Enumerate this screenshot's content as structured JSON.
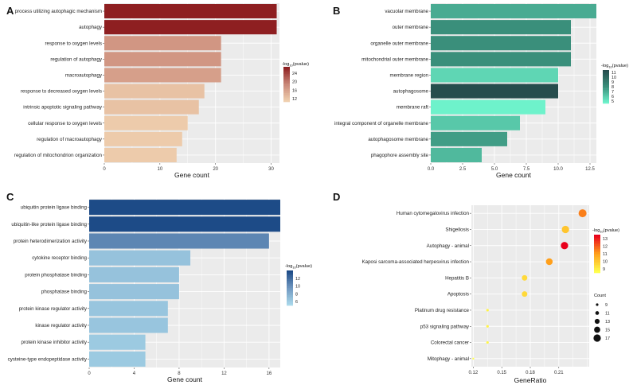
{
  "chart_data": [
    {
      "panel": "A",
      "type": "bar",
      "orientation": "horizontal",
      "categories": [
        "process utilizing autophagic mechanism",
        "autophagy",
        "response to oxygen levels",
        "regulation of autophagy",
        "macroautophagy",
        "response to decreased oxygen levels",
        "intrinsic apoptotic signaling pathway",
        "cellular response to oxygen levels",
        "regulation of macroautophagy",
        "regulation of mitochondrion organization"
      ],
      "values": [
        31,
        31,
        21,
        21,
        21,
        18,
        17,
        15,
        14,
        13
      ],
      "color_values": [
        27,
        27,
        17,
        17,
        16,
        12,
        12,
        11,
        11,
        11
      ],
      "xlabel": "Gene count",
      "xlim": [
        0,
        31.5
      ],
      "xticks": [
        "0",
        "10",
        "20",
        "30"
      ],
      "xtick_values": [
        0,
        10,
        20,
        30
      ],
      "legend": {
        "title_base": "-log",
        "title_sub": "10",
        "title_rest": "(pvalue)",
        "ticks": [
          "24",
          "20",
          "16",
          "12"
        ],
        "tick_values": [
          24,
          20,
          16,
          12
        ],
        "range": [
          10.5,
          27
        ]
      },
      "colors": {
        "low": "#efcfae",
        "mid": "#c98778",
        "high": "#8e1f21"
      }
    },
    {
      "panel": "B",
      "type": "bar",
      "orientation": "horizontal",
      "categories": [
        "vacuolar membrane",
        "outer membrane",
        "organelle outer membrane",
        "mitochondrial outer membrane",
        "membrane region",
        "autophagosome",
        "membrane raft",
        "integral component of organelle membrane",
        "autophagosome membrane",
        "phagophore assembly site"
      ],
      "values": [
        13,
        11,
        11,
        11,
        10,
        10,
        9,
        7,
        6,
        4
      ],
      "color_values": [
        7,
        8,
        8,
        8,
        5.5,
        11.5,
        4.5,
        6,
        7.5,
        6.5
      ],
      "xlabel": "Gene count",
      "xlim": [
        0,
        13
      ],
      "xticks": [
        "0.0",
        "2.5",
        "5.0",
        "7.5",
        "10.0",
        "12.5"
      ],
      "xtick_values": [
        0,
        2.5,
        5,
        7.5,
        10,
        12.5
      ],
      "legend": {
        "title_base": "-log",
        "title_sub": "10",
        "title_rest": "(pvalue)",
        "ticks": [
          "11",
          "10",
          "9",
          "8",
          "7",
          "6",
          "5"
        ],
        "tick_values": [
          11,
          10,
          9,
          8,
          7,
          6,
          5
        ],
        "range": [
          4.5,
          11.5
        ]
      },
      "colors": {
        "low": "#6ef2cb",
        "mid": "#3a8f7b",
        "high": "#264d4d"
      }
    },
    {
      "panel": "C",
      "type": "bar",
      "orientation": "horizontal",
      "categories": [
        "ubiquitin protein ligase binding",
        "ubiquitin-like protein ligase binding",
        "protein heterodimerization activity",
        "cytokine receptor binding",
        "protein phosphatase binding",
        "phosphatase binding",
        "protein kinase regulator activity",
        "kinase regulator activity",
        "protein kinase inhibitor activity",
        "cysteine-type endopeptidase activity"
      ],
      "values": [
        17,
        17,
        16,
        9,
        8,
        8,
        7,
        7,
        5,
        5
      ],
      "color_values": [
        14,
        14,
        10.5,
        6.5,
        6.5,
        6.5,
        6.3,
        6.3,
        6,
        6
      ],
      "xlabel": "Gene count",
      "xlim": [
        0,
        17
      ],
      "xticks": [
        "0",
        "4",
        "8",
        "12",
        "16"
      ],
      "xtick_values": [
        0,
        4,
        8,
        12,
        16
      ],
      "legend": {
        "title_base": "-log",
        "title_sub": "10",
        "title_rest": "(pvalue)",
        "ticks": [
          "12",
          "10",
          "8",
          "6"
        ],
        "tick_values": [
          12,
          10,
          8,
          6
        ],
        "range": [
          5,
          14
        ]
      },
      "colors": {
        "low": "#a9d8ea",
        "mid": "#6f97c0",
        "high": "#1d4b87"
      }
    },
    {
      "panel": "D",
      "type": "scatter",
      "categories": [
        "Human cytomegalovirus infection",
        "Shigellosis",
        "Autophagy - animal",
        "Kaposi sarcoma-associated herpesvirus infection",
        "Hepatitis B",
        "Apoptosis",
        "Platinum drug resistance",
        "p53 signaling pathway",
        "Colorectal cancer",
        "Mitophagy - animal"
      ],
      "x": [
        0.235,
        0.217,
        0.216,
        0.2,
        0.174,
        0.174,
        0.135,
        0.135,
        0.135,
        0.12
      ],
      "counts": [
        18,
        17,
        17,
        16,
        14,
        14,
        9,
        9,
        9,
        8
      ],
      "color_values": [
        11.5,
        10,
        13.5,
        11,
        9.5,
        9.5,
        8.8,
        8.8,
        8.7,
        8.5
      ],
      "xlabel": "GeneRatio",
      "xlim": [
        0.118,
        0.242
      ],
      "xticks": [
        "0.12",
        "0.15",
        "0.18",
        "0.21"
      ],
      "xtick_values": [
        0.12,
        0.15,
        0.18,
        0.21
      ],
      "color_legend": {
        "title_base": "-log",
        "title_sub": "10",
        "title_rest": "(pvalue)",
        "ticks": [
          "13",
          "12",
          "11",
          "10",
          "9"
        ],
        "tick_values": [
          13,
          12,
          11,
          10,
          9
        ],
        "range": [
          8.5,
          13.5
        ]
      },
      "size_legend": {
        "title": "Count",
        "labels": [
          "9",
          "11",
          "13",
          "15",
          "17"
        ],
        "values": [
          9,
          11,
          13,
          15,
          17
        ]
      },
      "colors": {
        "low": "#ffff4d",
        "mid": "#ff9f1a",
        "high": "#e8001c"
      }
    }
  ]
}
